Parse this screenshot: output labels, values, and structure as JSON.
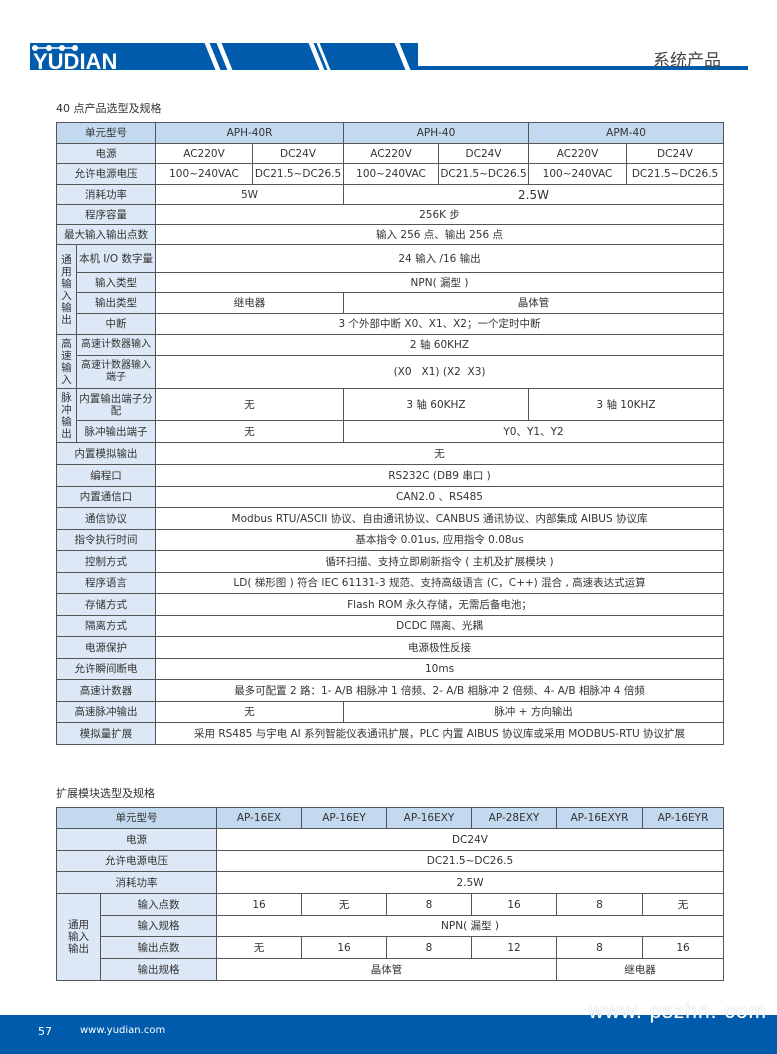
{
  "header": {
    "brand": "YUDIAN",
    "section": "系统产品",
    "brand_color": "#005bac"
  },
  "t1": {
    "title": "40 点产品选型及规格",
    "model_label": "单元型号",
    "models": [
      "APH-40R",
      "APH-40",
      "APM-40"
    ],
    "power_label": "电源",
    "power": [
      "AC220V",
      "DC24V",
      "AC220V",
      "DC24V",
      "AC220V",
      "DC24V"
    ],
    "voltage_label": "允许电源电压",
    "voltage": [
      "100~240VAC",
      "DC21.5~DC26.5",
      "100~240VAC",
      "DC21.5~DC26.5",
      "100~240VAC",
      "DC21.5~DC26.5"
    ],
    "consumption_label": "消耗功率",
    "consumption": [
      "5W",
      "2.5W"
    ],
    "capacity_label": "程序容量",
    "capacity": "256K 步",
    "maxio_label": "最大输入输出点数",
    "maxio": "输入 256 点、输出 256 点",
    "g1": "通用输入输出",
    "localio_label": "本机 I/O 数字量",
    "localio": "24 输入 /16 输出",
    "intype_label": "输入类型",
    "intype": "NPN( 漏型 )",
    "outtype_label": "输出类型",
    "outtype": [
      "继电器",
      "晶体管"
    ],
    "interrupt_label": "中断",
    "interrupt": "3 个外部中断 X0、X1、X2；一个定时中断",
    "g2": "高速输入",
    "hsc_label": "高速计数器输入",
    "hsc": "2 轴 60KHZ",
    "hsct_label": "高速计数器输入端子",
    "hsct": "(X0   X1) (X2  X3)",
    "g3": "脉冲输出",
    "pulse_alloc_label": "内置输出端子分配",
    "pulse_alloc": [
      "无",
      "3 轴 60KHZ",
      "3 轴 10KHZ"
    ],
    "pulse_term_label": "脉冲输出端子",
    "pulse_term": [
      "无",
      "Y0、Y1、Y2"
    ],
    "analog_label": "内置模拟输出",
    "analog": "无",
    "rows": [
      {
        "label": "编程口",
        "value": "RS232C (DB9 串口 )"
      },
      {
        "label": "内置通信口",
        "value": "CAN2.0  、RS485"
      },
      {
        "label": "通信协议",
        "value": "Modbus RTU/ASCII 协议、自由通讯协议、CANBUS 通讯协议、内部集成 AIBUS 协议库"
      },
      {
        "label": "指令执行时间",
        "value": "基本指令 0.01us, 应用指令 0.08us"
      },
      {
        "label": "控制方式",
        "value": "循环扫描、支持立即刷新指令 ( 主机及扩展模块 )"
      },
      {
        "label": "程序语言",
        "value": "LD( 梯形图 ) 符合 IEC 61131-3 规范、支持高级语言 (C，C++) 混合 , 高速表达式运算"
      },
      {
        "label": "存储方式",
        "value": "Flash ROM 永久存储，无需后备电池；"
      },
      {
        "label": "隔离方式",
        "value": "DCDC 隔离、光耦"
      },
      {
        "label": "电源保护",
        "value": "电源极性反接"
      },
      {
        "label": "允许瞬间断电",
        "value": "10ms"
      },
      {
        "label": "高速计数器",
        "value": "最多可配置 2 路：1- A/B 相脉冲 1 倍频、2- A/B 相脉冲 2 倍频、4- A/B 相脉冲 4 倍频"
      }
    ],
    "hspulse_label": "高速脉冲输出",
    "hspulse": [
      "无",
      "脉冲 + 方向输出"
    ],
    "ext_label": "模拟量扩展",
    "ext": "采用 RS485 与宇电 AI 系列智能仪表通讯扩展，PLC 内置 AIBUS 协议库或采用 MODBUS-RTU 协议扩展"
  },
  "t2": {
    "title": "扩展模块选型及规格",
    "model_label": "单元型号",
    "models": [
      "AP-16EX",
      "AP-16EY",
      "AP-16EXY",
      "AP-28EXY",
      "AP-16EXYR",
      "AP-16EYR"
    ],
    "power_label": "电源",
    "power": "DC24V",
    "voltage_label": "允许电源电压",
    "voltage": "DC21.5~DC26.5",
    "consumption_label": "消耗功率",
    "consumption": "2.5W",
    "group": "通用输入输出",
    "in_count_label": "输入点数",
    "in_count": [
      "16",
      "无",
      "8",
      "16",
      "8",
      "无"
    ],
    "in_spec_label": "输入规格",
    "in_spec": "NPN( 漏型 )",
    "out_count_label": "输出点数",
    "out_count": [
      "无",
      "16",
      "8",
      "12",
      "8",
      "16"
    ],
    "out_spec_label": "输出规格",
    "out_spec": [
      "晶体管",
      "继电器"
    ]
  },
  "footer": {
    "page": "57",
    "url": "www.yudian.com",
    "watermark": "www. pszhn. com"
  }
}
